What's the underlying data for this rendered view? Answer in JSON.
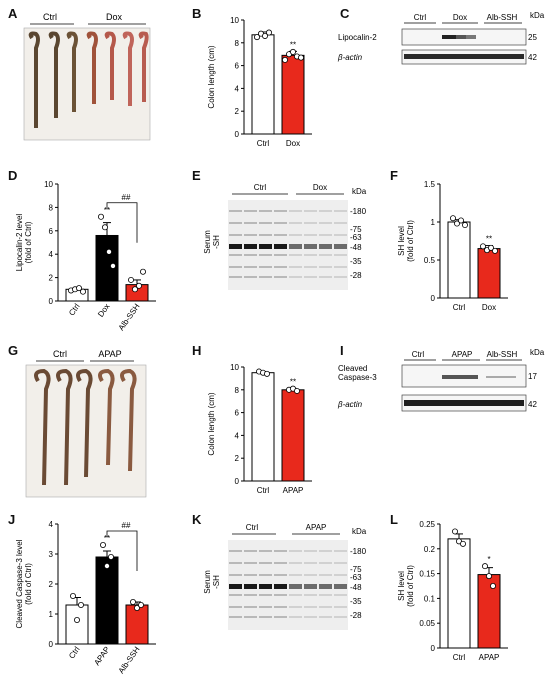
{
  "panels": {
    "A": {
      "label": "A",
      "groups": [
        "Ctrl",
        "Dox"
      ]
    },
    "B": {
      "label": "B"
    },
    "C": {
      "label": "C",
      "groups": [
        "Ctrl",
        "Dox",
        "Alb-SSH"
      ],
      "rows": [
        "Lipocalin-2",
        "β-actin"
      ],
      "kda_header": "kDa",
      "kda": [
        "25",
        "42"
      ]
    },
    "D": {
      "label": "D",
      "sig_bracket": "##"
    },
    "E": {
      "label": "E",
      "groups": [
        "Ctrl",
        "Dox"
      ],
      "row_label": "Serum\n-SH",
      "kda_header": "kDa",
      "kda": [
        "180",
        "75",
        "63",
        "48",
        "35",
        "28"
      ]
    },
    "F": {
      "label": "F"
    },
    "G": {
      "label": "G",
      "groups": [
        "Ctrl",
        "APAP"
      ]
    },
    "H": {
      "label": "H"
    },
    "I": {
      "label": "I",
      "groups": [
        "Ctrl",
        "APAP",
        "Alb-SSH"
      ],
      "rows": [
        "Cleaved\nCaspase-3",
        "β-actin"
      ],
      "kda_header": "kDa",
      "kda": [
        "17",
        "42"
      ]
    },
    "J": {
      "label": "J",
      "sig_bracket": "##"
    },
    "K": {
      "label": "K",
      "groups": [
        "Ctrl",
        "APAP"
      ],
      "row_label": "Serum\n-SH",
      "kda_header": "kDa",
      "kda": [
        "180",
        "75",
        "63",
        "48",
        "35",
        "28"
      ]
    },
    "L": {
      "label": "L"
    }
  },
  "chart_data": [
    {
      "id": "B",
      "type": "bar",
      "categories": [
        "Ctrl",
        "Dox"
      ],
      "values": [
        8.7,
        6.9
      ],
      "errors": [
        0.25,
        0.35
      ],
      "points": [
        [
          8.5,
          8.8,
          8.6,
          8.9
        ],
        [
          6.5,
          7.0,
          7.2,
          6.8,
          6.7
        ]
      ],
      "sig": [
        "",
        "**"
      ],
      "ylabel": "Colon length (cm)",
      "ylim": [
        0,
        10
      ],
      "yticks": [
        0,
        2,
        4,
        6,
        8,
        10
      ],
      "colors": [
        "#ffffff",
        "#e8291c"
      ]
    },
    {
      "id": "D",
      "type": "bar",
      "categories": [
        "Ctrl",
        "Dox",
        "Alb-SSH"
      ],
      "values": [
        1.0,
        5.6,
        1.4
      ],
      "errors": [
        0.15,
        1.1,
        0.4
      ],
      "points": [
        [
          0.9,
          1.0,
          1.1,
          0.8
        ],
        [
          7.2,
          6.3,
          4.2,
          3.0
        ],
        [
          1.8,
          1.0,
          1.3,
          2.5
        ]
      ],
      "sig": [
        "",
        "**",
        ""
      ],
      "ylabel": "Lipocalin-2 level\n(fold of Ctrl)",
      "ylim": [
        0,
        10
      ],
      "yticks": [
        0,
        2,
        4,
        6,
        8,
        10
      ],
      "colors": [
        "#ffffff",
        "#000000",
        "#e8291c"
      ]
    },
    {
      "id": "F",
      "type": "bar",
      "categories": [
        "Ctrl",
        "Dox"
      ],
      "values": [
        1.0,
        0.65
      ],
      "errors": [
        0.03,
        0.04
      ],
      "points": [
        [
          1.05,
          0.98,
          1.02,
          0.96
        ],
        [
          0.68,
          0.63,
          0.66,
          0.62
        ]
      ],
      "sig": [
        "",
        "**"
      ],
      "ylabel": "SH level\n(fold of Ctrl)",
      "ylim": [
        0,
        1.5
      ],
      "yticks": [
        0.0,
        0.5,
        1.0,
        1.5
      ],
      "colors": [
        "#ffffff",
        "#e8291c"
      ]
    },
    {
      "id": "H",
      "type": "bar",
      "categories": [
        "Ctrl",
        "APAP"
      ],
      "values": [
        9.5,
        8.0
      ],
      "errors": [
        0.1,
        0.12
      ],
      "points": [
        [
          9.6,
          9.5,
          9.4
        ],
        [
          8.0,
          8.1,
          7.9
        ]
      ],
      "sig": [
        "",
        "**"
      ],
      "ylabel": "Colon length (cm)",
      "ylim": [
        0,
        10
      ],
      "yticks": [
        0,
        2,
        4,
        6,
        8,
        10
      ],
      "colors": [
        "#ffffff",
        "#e8291c"
      ]
    },
    {
      "id": "J",
      "type": "bar",
      "categories": [
        "Ctrl",
        "APAP",
        "Alb-SSH"
      ],
      "values": [
        1.3,
        2.9,
        1.3
      ],
      "errors": [
        0.25,
        0.2,
        0.1
      ],
      "points": [
        [
          1.6,
          0.8,
          1.3
        ],
        [
          3.3,
          2.6,
          2.9
        ],
        [
          1.4,
          1.2,
          1.3
        ]
      ],
      "sig": [
        "",
        "**",
        ""
      ],
      "ylabel": "Cleaved Caspase-3 level\n(fold of Ctrl)",
      "ylim": [
        0,
        4
      ],
      "yticks": [
        0,
        1,
        2,
        3,
        4
      ],
      "colors": [
        "#ffffff",
        "#000000",
        "#e8291c"
      ]
    },
    {
      "id": "L",
      "type": "bar",
      "categories": [
        "Ctrl",
        "APAP"
      ],
      "values": [
        0.22,
        0.148
      ],
      "errors": [
        0.01,
        0.014
      ],
      "points": [
        [
          0.235,
          0.215,
          0.21
        ],
        [
          0.165,
          0.145,
          0.125
        ]
      ],
      "sig": [
        "",
        "*"
      ],
      "ylabel": "SH level\n(fold of Ctrl)",
      "ylim": [
        0,
        0.25
      ],
      "yticks": [
        0.0,
        0.05,
        0.1,
        0.15,
        0.2,
        0.25
      ],
      "colors": [
        "#ffffff",
        "#e8291c"
      ]
    }
  ]
}
